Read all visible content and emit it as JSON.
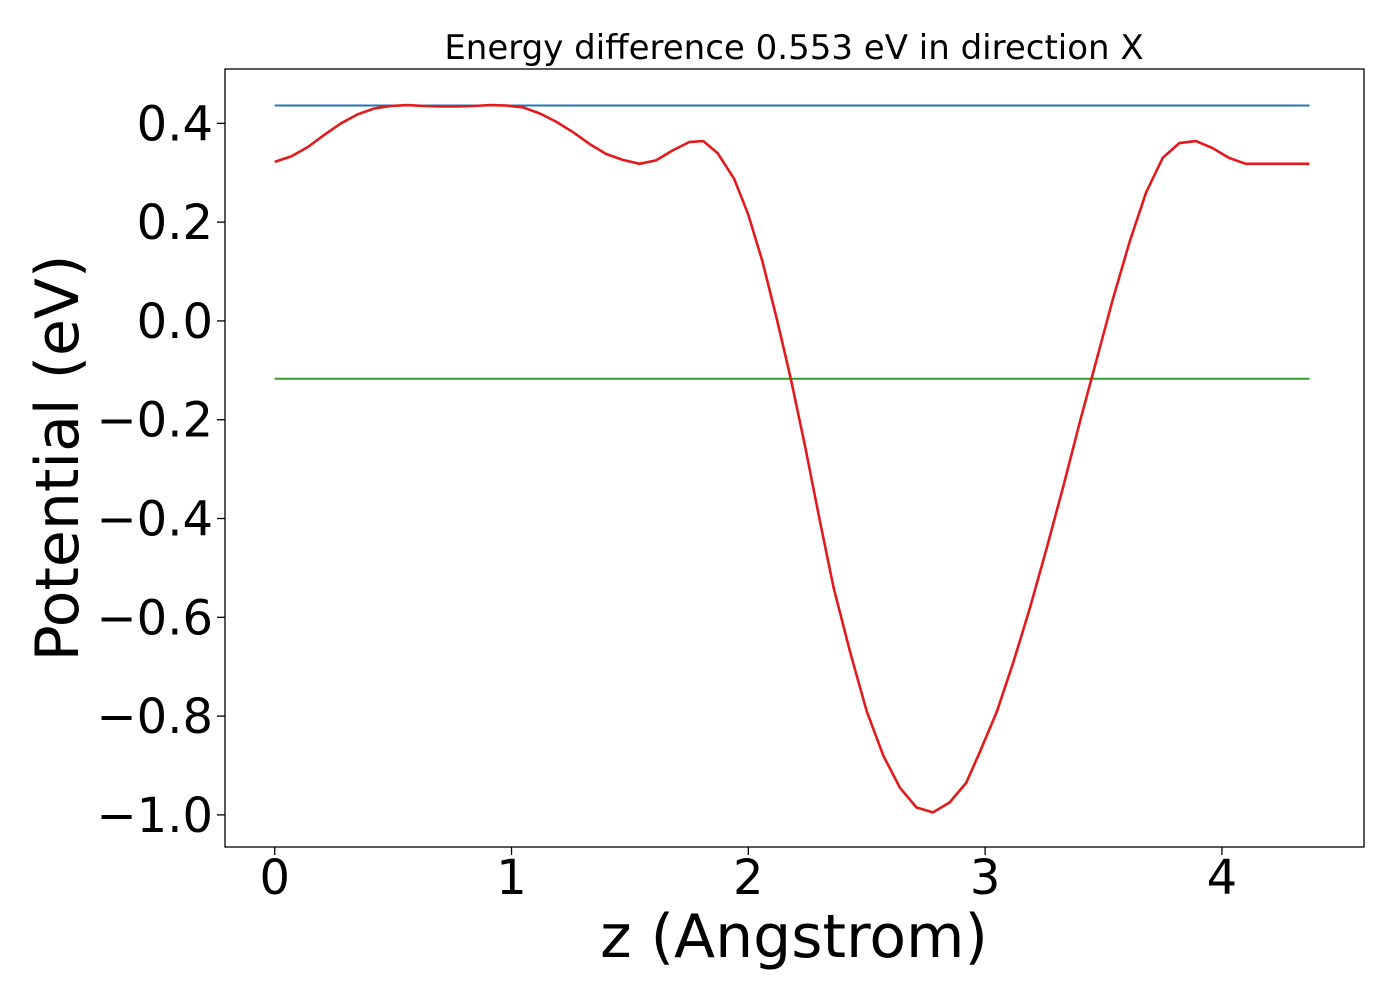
{
  "chart_data": {
    "type": "line",
    "title": "Energy difference 0.553 eV in direction X",
    "xlabel": "z (Angstrom)",
    "ylabel": "Potential (eV)",
    "xlim": [
      -0.21,
      4.6
    ],
    "ylim": [
      -1.065,
      0.51
    ],
    "xticks": [
      0,
      1,
      2,
      3,
      4
    ],
    "xtick_labels": [
      "0",
      "1",
      "2",
      "3",
      "4"
    ],
    "yticks": [
      0.4,
      0.2,
      0.0,
      -0.2,
      -0.4,
      -0.6,
      -0.8,
      -1.0
    ],
    "ytick_labels": [
      "0.4",
      "0.2",
      "0.0",
      "−0.2",
      "−0.4",
      "−0.6",
      "−0.8",
      "−1.0"
    ],
    "grid": false,
    "hlines": [
      {
        "y": 0.436,
        "x_range": [
          0,
          4.37
        ],
        "color": "#1f77b4"
      },
      {
        "y": -0.117,
        "x_range": [
          0,
          4.37
        ],
        "color": "#2ca02c"
      }
    ],
    "series": [
      {
        "color": "#e31a1c",
        "x": [
          0,
          0.07,
          0.14,
          0.21,
          0.28,
          0.35,
          0.42,
          0.49,
          0.56,
          0.63,
          0.7,
          0.77,
          0.84,
          0.91,
          0.98,
          1.05,
          1.12,
          1.19,
          1.26,
          1.33,
          1.4,
          1.47,
          1.54,
          1.61,
          1.68,
          1.75,
          1.81,
          1.87,
          1.94,
          2.0,
          2.06,
          2.12,
          2.18,
          2.24,
          2.3,
          2.36,
          2.43,
          2.5,
          2.57,
          2.64,
          2.71,
          2.78,
          2.85,
          2.92,
          2.98,
          3.05,
          3.12,
          3.19,
          3.26,
          3.33,
          3.4,
          3.47,
          3.54,
          3.61,
          3.68,
          3.75,
          3.82,
          3.89,
          3.96,
          4.03,
          4.1,
          4.17,
          4.24,
          4.31,
          4.37
        ],
        "y": [
          0.322,
          0.333,
          0.352,
          0.377,
          0.4,
          0.418,
          0.43,
          0.435,
          0.437,
          0.435,
          0.434,
          0.434,
          0.435,
          0.437,
          0.436,
          0.432,
          0.42,
          0.403,
          0.382,
          0.358,
          0.338,
          0.326,
          0.318,
          0.325,
          0.345,
          0.362,
          0.364,
          0.34,
          0.288,
          0.215,
          0.12,
          0.005,
          -0.118,
          -0.255,
          -0.4,
          -0.54,
          -0.67,
          -0.79,
          -0.88,
          -0.945,
          -0.985,
          -0.995,
          -0.975,
          -0.935,
          -0.87,
          -0.79,
          -0.69,
          -0.58,
          -0.46,
          -0.335,
          -0.205,
          -0.08,
          0.045,
          0.16,
          0.26,
          0.33,
          0.36,
          0.364,
          0.35,
          0.33,
          0.318,
          0.318,
          0.318,
          0.318,
          0.318
        ]
      }
    ]
  }
}
